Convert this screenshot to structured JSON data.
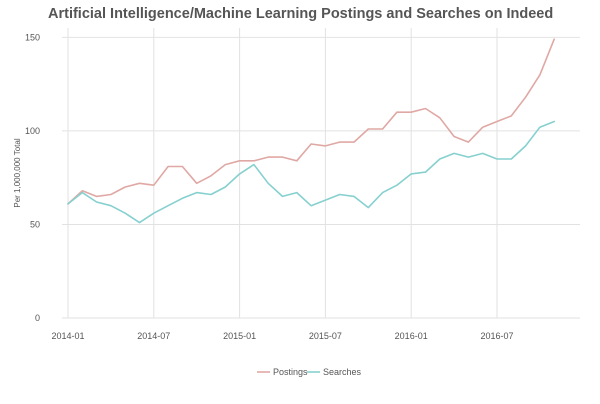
{
  "chart_data": {
    "type": "line",
    "title": "Artificial Intelligence/Machine Learning Postings and Searches on Indeed",
    "xlabel": "",
    "ylabel": "Per 1,000,000 Total",
    "ylim": [
      0,
      155
    ],
    "yticks": [
      0,
      50,
      100,
      150
    ],
    "grid": true,
    "legend_position": "bottom",
    "x": [
      "2014-01",
      "2014-02",
      "2014-03",
      "2014-04",
      "2014-05",
      "2014-06",
      "2014-07",
      "2014-08",
      "2014-09",
      "2014-10",
      "2014-11",
      "2014-12",
      "2015-01",
      "2015-02",
      "2015-03",
      "2015-04",
      "2015-05",
      "2015-06",
      "2015-07",
      "2015-08",
      "2015-09",
      "2015-10",
      "2015-11",
      "2015-12",
      "2016-01",
      "2016-02",
      "2016-03",
      "2016-04",
      "2016-05",
      "2016-06",
      "2016-07",
      "2016-08",
      "2016-09",
      "2016-10",
      "2016-11"
    ],
    "xticks": [
      "2014-01",
      "2014-07",
      "2015-01",
      "2015-07",
      "2016-01",
      "2016-07"
    ],
    "series": [
      {
        "name": "Postings",
        "color": "#e0a8a4",
        "values": [
          61,
          68,
          65,
          66,
          70,
          72,
          71,
          81,
          81,
          72,
          76,
          82,
          84,
          84,
          86,
          86,
          84,
          93,
          92,
          94,
          94,
          101,
          101,
          110,
          110,
          112,
          107,
          97,
          94,
          102,
          105,
          108,
          118,
          130,
          149
        ]
      },
      {
        "name": "Searches",
        "color": "#86d0cf",
        "values": [
          61,
          67,
          62,
          60,
          56,
          51,
          56,
          60,
          64,
          67,
          66,
          70,
          77,
          82,
          72,
          65,
          67,
          60,
          63,
          66,
          65,
          59,
          67,
          71,
          77,
          78,
          85,
          88,
          86,
          88,
          85,
          85,
          92,
          102,
          105
        ]
      }
    ]
  }
}
